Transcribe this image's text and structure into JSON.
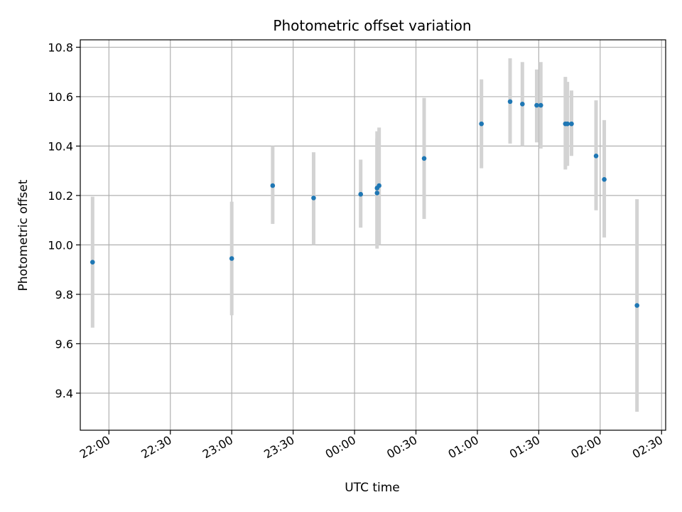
{
  "chart_data": {
    "type": "scatter",
    "title": "Photometric offset variation",
    "xlabel": "UTC time",
    "ylabel": "Photometric offset",
    "xlim": [
      "21:46",
      "02:32"
    ],
    "ylim": [
      9.25,
      10.83
    ],
    "x_tick_labels": [
      "22:00",
      "22:30",
      "23:00",
      "23:30",
      "00:00",
      "00:30",
      "01:00",
      "01:30",
      "02:00",
      "02:30"
    ],
    "y_ticks": [
      9.4,
      9.6,
      9.8,
      10.0,
      10.2,
      10.4,
      10.6,
      10.8
    ],
    "y_tick_labels": [
      "9.4",
      "9.6",
      "9.8",
      "10.0",
      "10.2",
      "10.4",
      "10.6",
      "10.8"
    ],
    "grid": true,
    "point_color": "#1f77b4",
    "errorbar_color": "#d3d3d3",
    "points": [
      {
        "x": "21:52",
        "y": 9.93,
        "err_low": 9.665,
        "err_high": 10.195
      },
      {
        "x": "23:00",
        "y": 9.945,
        "err_low": 9.715,
        "err_high": 10.175
      },
      {
        "x": "23:20",
        "y": 10.24,
        "err_low": 10.085,
        "err_high": 10.4
      },
      {
        "x": "23:40",
        "y": 10.19,
        "err_low": 10.0,
        "err_high": 10.375
      },
      {
        "x": "00:03",
        "y": 10.205,
        "err_low": 10.07,
        "err_high": 10.345
      },
      {
        "x": "00:11",
        "y": 10.21,
        "err_low": 9.985,
        "err_high": 10.43
      },
      {
        "x": "00:11",
        "y": 10.23,
        "err_low": 10.0,
        "err_high": 10.46
      },
      {
        "x": "00:12",
        "y": 10.24,
        "err_low": 10.0,
        "err_high": 10.475
      },
      {
        "x": "00:34",
        "y": 10.35,
        "err_low": 10.105,
        "err_high": 10.595
      },
      {
        "x": "01:02",
        "y": 10.49,
        "err_low": 10.31,
        "err_high": 10.67
      },
      {
        "x": "01:16",
        "y": 10.58,
        "err_low": 10.41,
        "err_high": 10.755
      },
      {
        "x": "01:22",
        "y": 10.57,
        "err_low": 10.4,
        "err_high": 10.74
      },
      {
        "x": "01:29",
        "y": 10.565,
        "err_low": 10.415,
        "err_high": 10.71
      },
      {
        "x": "01:31",
        "y": 10.565,
        "err_low": 10.39,
        "err_high": 10.74
      },
      {
        "x": "01:43",
        "y": 10.49,
        "err_low": 10.305,
        "err_high": 10.68
      },
      {
        "x": "01:44",
        "y": 10.49,
        "err_low": 10.32,
        "err_high": 10.66
      },
      {
        "x": "01:46",
        "y": 10.49,
        "err_low": 10.36,
        "err_high": 10.625
      },
      {
        "x": "01:58",
        "y": 10.36,
        "err_low": 10.14,
        "err_high": 10.585
      },
      {
        "x": "02:02",
        "y": 10.265,
        "err_low": 10.03,
        "err_high": 10.505
      },
      {
        "x": "02:18",
        "y": 9.755,
        "err_low": 9.325,
        "err_high": 10.185
      }
    ]
  }
}
